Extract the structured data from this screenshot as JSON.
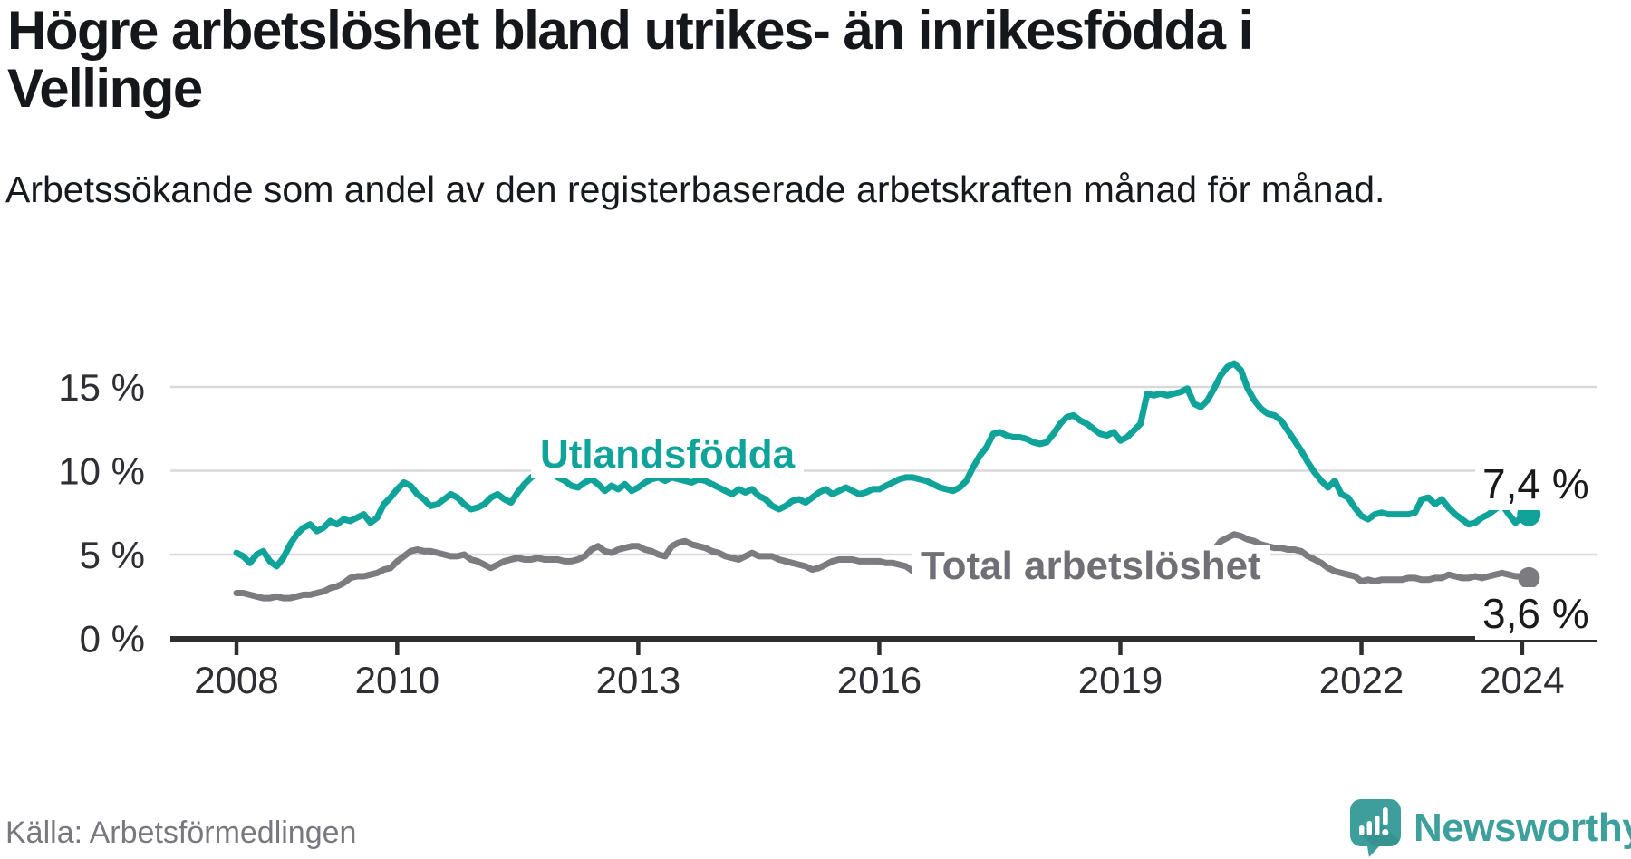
{
  "header": {
    "title": "Högre arbetslöshet bland utrikes- än inrikesfödda i Vellinge",
    "subtitle": "Arbetssökande som andel av den registerbaserade arbetskraften månad för månad."
  },
  "chart_data": {
    "type": "line",
    "title": "Högre arbetslöshet bland utrikes- än inrikesfödda i Vellinge",
    "unit": "%",
    "frequency": "monthly",
    "x_start": "2008-01",
    "x_end": "2024-02",
    "ylim": [
      0,
      17
    ],
    "grid": "horizontal",
    "y_ticks": [
      {
        "value": 0,
        "label": "0 %"
      },
      {
        "value": 5,
        "label": "5 %"
      },
      {
        "value": 10,
        "label": "10 %"
      },
      {
        "value": 15,
        "label": "15 %"
      }
    ],
    "x_ticks": [
      {
        "year": 2008,
        "label": "2008"
      },
      {
        "year": 2010,
        "label": "2010"
      },
      {
        "year": 2013,
        "label": "2013"
      },
      {
        "year": 2016,
        "label": "2016"
      },
      {
        "year": 2019,
        "label": "2019"
      },
      {
        "year": 2022,
        "label": "2022"
      },
      {
        "year": 2024,
        "label": "2024"
      }
    ],
    "series": [
      {
        "name": "Utlandsfödda",
        "color": "#0fa39a",
        "end_label": "7,4 %",
        "end_value": 7.4,
        "values": [
          5.1,
          4.9,
          4.5,
          5.0,
          5.2,
          4.6,
          4.3,
          4.8,
          5.6,
          6.2,
          6.6,
          6.8,
          6.4,
          6.6,
          7.0,
          6.8,
          7.1,
          7.0,
          7.2,
          7.4,
          6.9,
          7.2,
          8.0,
          8.4,
          8.9,
          9.3,
          9.1,
          8.6,
          8.3,
          7.9,
          8.0,
          8.3,
          8.6,
          8.4,
          8.0,
          7.7,
          7.8,
          8.0,
          8.4,
          8.6,
          8.3,
          8.1,
          8.7,
          9.2,
          9.6,
          9.9,
          10.0,
          9.9,
          9.6,
          9.4,
          9.1,
          9.0,
          9.3,
          9.5,
          9.2,
          8.8,
          9.1,
          8.9,
          9.2,
          8.8,
          9.0,
          9.3,
          9.5,
          9.6,
          9.4,
          9.6,
          9.5,
          9.4,
          9.3,
          9.5,
          9.4,
          9.2,
          9.0,
          8.8,
          8.6,
          8.9,
          8.7,
          8.9,
          8.5,
          8.3,
          7.9,
          7.7,
          7.9,
          8.2,
          8.3,
          8.1,
          8.4,
          8.7,
          8.9,
          8.6,
          8.8,
          9.0,
          8.8,
          8.6,
          8.7,
          8.9,
          8.9,
          9.1,
          9.3,
          9.5,
          9.6,
          9.6,
          9.5,
          9.4,
          9.2,
          9.0,
          8.9,
          8.8,
          9.0,
          9.4,
          10.2,
          10.9,
          11.4,
          12.2,
          12.3,
          12.1,
          12.0,
          12.0,
          11.9,
          11.7,
          11.6,
          11.7,
          12.2,
          12.8,
          13.2,
          13.3,
          13.0,
          12.8,
          12.5,
          12.2,
          12.1,
          12.3,
          11.8,
          12.0,
          12.4,
          12.8,
          14.6,
          14.5,
          14.6,
          14.5,
          14.6,
          14.7,
          14.9,
          14.0,
          13.8,
          14.2,
          14.9,
          15.7,
          16.2,
          16.4,
          16.0,
          14.9,
          14.2,
          13.7,
          13.4,
          13.3,
          13.0,
          12.4,
          11.8,
          11.2,
          10.5,
          9.9,
          9.4,
          9.0,
          9.4,
          8.6,
          8.4,
          7.8,
          7.3,
          7.1,
          7.4,
          7.5,
          7.4,
          7.4,
          7.4,
          7.4,
          7.5,
          8.3,
          8.4,
          8.0,
          8.3,
          7.8,
          7.4,
          7.1,
          6.8,
          6.9,
          7.2,
          7.4,
          7.7,
          8.0,
          7.4,
          6.9,
          7.3,
          7.4
        ]
      },
      {
        "name": "Total arbetslöshet",
        "color": "#7b7b80",
        "end_label": "3,6 %",
        "end_value": 3.6,
        "values": [
          2.7,
          2.7,
          2.6,
          2.5,
          2.4,
          2.4,
          2.5,
          2.4,
          2.4,
          2.5,
          2.6,
          2.6,
          2.7,
          2.8,
          3.0,
          3.1,
          3.3,
          3.6,
          3.7,
          3.7,
          3.8,
          3.9,
          4.1,
          4.2,
          4.6,
          4.9,
          5.2,
          5.3,
          5.2,
          5.2,
          5.1,
          5.0,
          4.9,
          4.9,
          5.0,
          4.7,
          4.6,
          4.4,
          4.2,
          4.4,
          4.6,
          4.7,
          4.8,
          4.7,
          4.7,
          4.8,
          4.7,
          4.7,
          4.7,
          4.6,
          4.6,
          4.7,
          4.9,
          5.3,
          5.5,
          5.2,
          5.1,
          5.3,
          5.4,
          5.5,
          5.5,
          5.3,
          5.2,
          5.0,
          4.9,
          5.5,
          5.7,
          5.8,
          5.6,
          5.5,
          5.4,
          5.2,
          5.1,
          4.9,
          4.8,
          4.7,
          4.9,
          5.1,
          4.9,
          4.9,
          4.9,
          4.7,
          4.6,
          4.5,
          4.4,
          4.3,
          4.1,
          4.2,
          4.4,
          4.6,
          4.7,
          4.7,
          4.7,
          4.6,
          4.6,
          4.6,
          4.6,
          4.5,
          4.5,
          4.4,
          4.3,
          4.0,
          3.9,
          3.9,
          3.9,
          4.0,
          4.0,
          4.0,
          4.0,
          4.0,
          4.0,
          4.0,
          4.1,
          4.1,
          4.1,
          4.0,
          4.0,
          3.9,
          3.9,
          3.9,
          3.9,
          3.8,
          3.8,
          3.8,
          3.8,
          3.8,
          3.8,
          3.7,
          3.7,
          3.7,
          3.7,
          3.8,
          3.8,
          3.8,
          3.8,
          3.9,
          3.9,
          3.9,
          4.0,
          4.0,
          4.0,
          4.0,
          4.1,
          4.1,
          4.2,
          4.3,
          5.3,
          5.8,
          6.0,
          6.2,
          6.1,
          5.9,
          5.8,
          5.6,
          5.5,
          5.4,
          5.4,
          5.3,
          5.3,
          5.2,
          4.9,
          4.7,
          4.5,
          4.2,
          4.0,
          3.9,
          3.8,
          3.7,
          3.4,
          3.5,
          3.4,
          3.5,
          3.5,
          3.5,
          3.5,
          3.6,
          3.6,
          3.5,
          3.5,
          3.6,
          3.6,
          3.8,
          3.7,
          3.6,
          3.6,
          3.7,
          3.6,
          3.7,
          3.8,
          3.9,
          3.8,
          3.7,
          3.7,
          3.6
        ]
      }
    ]
  },
  "footer": {
    "source": "Källa: Arbetsförmedlingen",
    "brand": "Newsworthy"
  },
  "colors": {
    "teal_line": "#0fa39a",
    "gray_line": "#7b7b80",
    "gridline": "#d9d9d9",
    "axis": "#2f2f32",
    "tick_text": "#2e2e33",
    "logo_teal": "#3d9e9b"
  }
}
